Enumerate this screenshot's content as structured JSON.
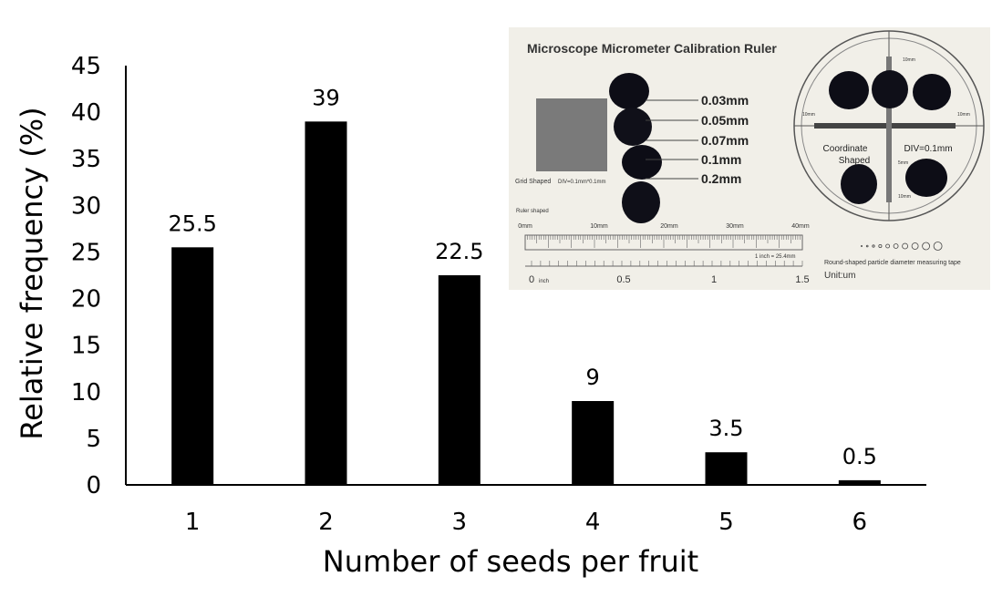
{
  "chart_data": {
    "type": "bar",
    "title": "",
    "xlabel": "Number of seeds per fruit",
    "ylabel": "Relative frequency (%)",
    "categories": [
      "1",
      "2",
      "3",
      "4",
      "5",
      "6"
    ],
    "values": [
      25.5,
      39,
      22.5,
      9,
      3.5,
      0.5
    ],
    "data_labels": [
      "25.5",
      "39",
      "22.5",
      "9",
      "3.5",
      "0.5"
    ],
    "ylim": [
      0,
      45
    ],
    "yticks": [
      0,
      5,
      10,
      15,
      20,
      25,
      30,
      35,
      40,
      45
    ],
    "grid": false,
    "legend": "none",
    "bar_color": "#000000"
  },
  "inset_photo": {
    "title": "Microscope Micrometer Calibration Ruler",
    "scale_labels": [
      "0.03mm",
      "0.05mm",
      "0.07mm",
      "0.1mm",
      "0.2mm"
    ],
    "grid_label": "Grid Shaped",
    "grid_div": "DIV=0.1mm*0.1mm",
    "ruler_label": "Ruler shaped",
    "mm_ticks": [
      "0mm",
      "10mm",
      "20mm",
      "30mm",
      "40mm"
    ],
    "inch_note": "1 inch = 25.4mm",
    "inch_ticks": [
      "0",
      "0.5",
      "1",
      "1.5"
    ],
    "inch_unit": "inch",
    "coord_label_1": "Coordinate",
    "coord_label_2": "Shaped",
    "coord_div": "DIV=0.1mm",
    "particle_label": "Round-shaped particle diameter measuring tape",
    "unit_label": "Unit:um",
    "axis_10mm_top": "10mm",
    "axis_10mm_left": "10mm",
    "axis_10mm_right": "10mm",
    "axis_5mm": "5mm",
    "axis_10mm_bottom": "10mm",
    "background": "#f1efe8"
  }
}
